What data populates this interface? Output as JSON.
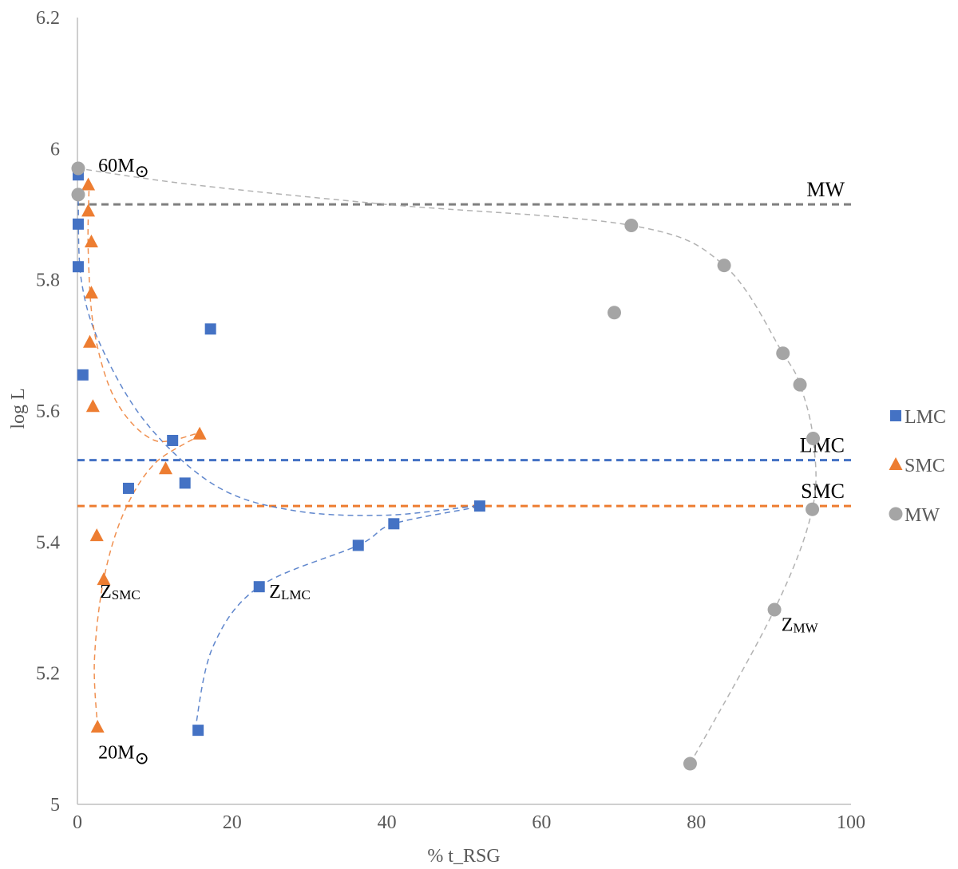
{
  "chart_data": {
    "type": "scatter",
    "xlabel": "% t_RSG",
    "ylabel": "log L",
    "xlim": [
      0,
      100
    ],
    "ylim": [
      5,
      6.2
    ],
    "x_ticks": [
      "0",
      "20",
      "40",
      "60",
      "80",
      "100"
    ],
    "y_ticks": [
      "5",
      "5.2",
      "5.4",
      "5.6",
      "5.8",
      "6",
      "6.2"
    ],
    "grid": false,
    "legend_position": "right",
    "series": [
      {
        "name": "LMC",
        "marker": "square",
        "color": "#4472C4",
        "points": [
          {
            "x": 0.1,
            "y": 5.96
          },
          {
            "x": 0.1,
            "y": 5.885
          },
          {
            "x": 0.1,
            "y": 5.82
          },
          {
            "x": 0.7,
            "y": 5.655
          },
          {
            "x": 17.2,
            "y": 5.725
          },
          {
            "x": 12.3,
            "y": 5.555
          },
          {
            "x": 6.6,
            "y": 5.482
          },
          {
            "x": 13.9,
            "y": 5.49
          },
          {
            "x": 52.0,
            "y": 5.455
          },
          {
            "x": 40.9,
            "y": 5.428
          },
          {
            "x": 36.3,
            "y": 5.395
          },
          {
            "x": 23.5,
            "y": 5.332
          },
          {
            "x": 15.6,
            "y": 5.113
          }
        ]
      },
      {
        "name": "SMC",
        "marker": "triangle",
        "color": "#ED7D31",
        "points": [
          {
            "x": 1.4,
            "y": 5.945
          },
          {
            "x": 1.4,
            "y": 5.905
          },
          {
            "x": 1.8,
            "y": 5.858
          },
          {
            "x": 1.8,
            "y": 5.78
          },
          {
            "x": 1.6,
            "y": 5.705
          },
          {
            "x": 2.0,
            "y": 5.607
          },
          {
            "x": 15.8,
            "y": 5.565
          },
          {
            "x": 11.4,
            "y": 5.512
          },
          {
            "x": 2.5,
            "y": 5.41
          },
          {
            "x": 3.4,
            "y": 5.343
          },
          {
            "x": 2.6,
            "y": 5.118
          }
        ]
      },
      {
        "name": "MW",
        "marker": "circle",
        "color": "#A5A5A5",
        "points": [
          {
            "x": 0.1,
            "y": 5.97
          },
          {
            "x": 0.1,
            "y": 5.93
          },
          {
            "x": 71.6,
            "y": 5.883
          },
          {
            "x": 83.6,
            "y": 5.822
          },
          {
            "x": 69.4,
            "y": 5.75
          },
          {
            "x": 91.2,
            "y": 5.688
          },
          {
            "x": 93.4,
            "y": 5.64
          },
          {
            "x": 95.1,
            "y": 5.558
          },
          {
            "x": 95.0,
            "y": 5.45
          },
          {
            "x": 90.1,
            "y": 5.297
          },
          {
            "x": 79.2,
            "y": 5.062
          }
        ]
      }
    ],
    "reference_lines": [
      {
        "label": "MW",
        "y": 5.915,
        "color": "#7F7F7F"
      },
      {
        "label": "LMC",
        "y": 5.525,
        "color": "#4472C4"
      },
      {
        "label": "SMC",
        "y": 5.455,
        "color": "#ED7D31"
      }
    ],
    "trend_curves": [
      {
        "series": "LMC",
        "color": "#4472C4",
        "points": [
          [
            15.2,
            5.113
          ],
          [
            17.5,
            5.24
          ],
          [
            23.5,
            5.332
          ],
          [
            36.3,
            5.395
          ],
          [
            40.9,
            5.428
          ],
          [
            52.0,
            5.455
          ],
          [
            40,
            5.441
          ],
          [
            28,
            5.448
          ],
          [
            18,
            5.485
          ],
          [
            9,
            5.58
          ],
          [
            3,
            5.7
          ],
          [
            0.5,
            5.8
          ],
          [
            0.1,
            5.92
          ]
        ]
      },
      {
        "series": "SMC",
        "color": "#ED7D31",
        "points": [
          [
            2.6,
            5.118
          ],
          [
            2.2,
            5.22
          ],
          [
            3.4,
            5.343
          ],
          [
            6,
            5.445
          ],
          [
            10,
            5.52
          ],
          [
            15.8,
            5.565
          ],
          [
            10,
            5.555
          ],
          [
            5,
            5.615
          ],
          [
            2.2,
            5.72
          ],
          [
            1.4,
            5.84
          ],
          [
            1.5,
            5.94
          ]
        ]
      },
      {
        "series": "MW",
        "color": "#A5A5A5",
        "points": [
          [
            79.2,
            5.062
          ],
          [
            90.1,
            5.297
          ],
          [
            95.0,
            5.45
          ],
          [
            95.1,
            5.558
          ],
          [
            93.4,
            5.64
          ],
          [
            91.2,
            5.688
          ],
          [
            83.6,
            5.822
          ],
          [
            71.6,
            5.883
          ],
          [
            40,
            5.915
          ],
          [
            15,
            5.945
          ],
          [
            0.1,
            5.97
          ]
        ]
      }
    ],
    "annotations": [
      {
        "main": "60M",
        "sub": "",
        "symbol": "⊙",
        "x": 2.7,
        "y": 5.965
      },
      {
        "main": "20M",
        "sub": "",
        "symbol": "⊙",
        "x": 2.7,
        "y": 5.07
      },
      {
        "main": "Z",
        "sub": "SMC",
        "symbol": "",
        "x": 2.9,
        "y": 5.315
      },
      {
        "main": "Z",
        "sub": "LMC",
        "symbol": "",
        "x": 24.8,
        "y": 5.315
      },
      {
        "main": "Z",
        "sub": "MW",
        "symbol": "",
        "x": 91.0,
        "y": 5.265
      }
    ]
  }
}
